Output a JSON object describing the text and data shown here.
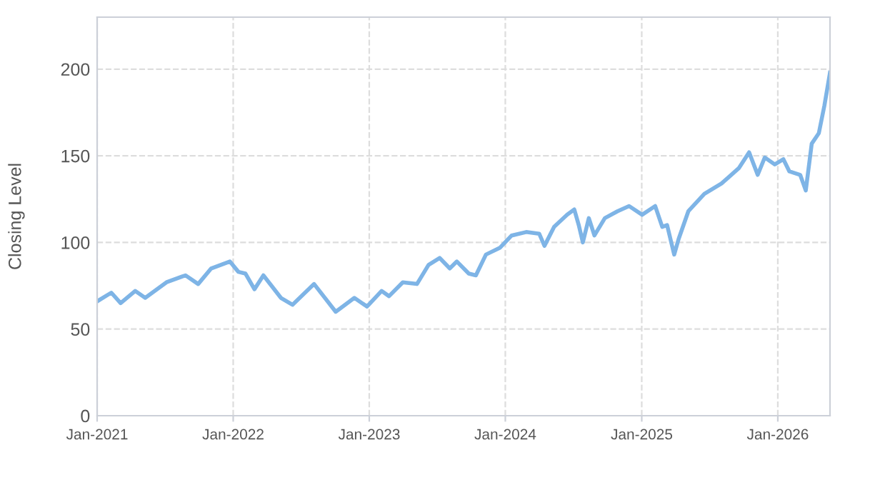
{
  "chart_data": {
    "type": "line",
    "ylabel": "Closing Level",
    "xlim": [
      "2021-01-01",
      "2026-05-21"
    ],
    "ylim": [
      0,
      230
    ],
    "yticks": [
      0,
      50,
      100,
      150,
      200
    ],
    "xticks": [
      {
        "value": "2021-01-01",
        "label": "Jan-2021"
      },
      {
        "value": "2022-01-01",
        "label": "Jan-2022"
      },
      {
        "value": "2023-01-01",
        "label": "Jan-2023"
      },
      {
        "value": "2024-01-01",
        "label": "Jan-2024"
      },
      {
        "value": "2025-01-01",
        "label": "Jan-2025"
      },
      {
        "value": "2026-01-01",
        "label": "Jan-2026"
      }
    ],
    "grid": true,
    "line_style": "solid",
    "marker": "none",
    "x": [
      "2021-01-01",
      "2021-02-08",
      "2021-03-05",
      "2021-04-13",
      "2021-05-10",
      "2021-07-06",
      "2021-08-26",
      "2021-09-29",
      "2021-11-03",
      "2021-12-23",
      "2022-01-15",
      "2022-02-03",
      "2022-02-27",
      "2022-03-23",
      "2022-05-09",
      "2022-06-09",
      "2022-08-06",
      "2022-10-03",
      "2022-11-22",
      "2022-12-26",
      "2023-02-03",
      "2023-02-23",
      "2023-04-01",
      "2023-05-09",
      "2023-06-09",
      "2023-07-09",
      "2023-08-05",
      "2023-08-24",
      "2023-09-25",
      "2023-10-14",
      "2023-11-10",
      "2023-12-18",
      "2024-01-18",
      "2024-02-26",
      "2024-04-01",
      "2024-04-15",
      "2024-05-11",
      "2024-06-15",
      "2024-07-04",
      "2024-07-16",
      "2024-07-27",
      "2024-08-12",
      "2024-08-27",
      "2024-09-24",
      "2024-10-28",
      "2024-11-28",
      "2025-01-02",
      "2025-02-06",
      "2025-02-25",
      "2025-03-10",
      "2025-03-29",
      "2025-04-10",
      "2025-05-06",
      "2025-06-18",
      "2025-08-03",
      "2025-09-19",
      "2025-10-16",
      "2025-11-08",
      "2025-11-27",
      "2025-12-24",
      "2026-01-16",
      "2026-02-01",
      "2026-03-02",
      "2026-03-17",
      "2026-04-02",
      "2026-04-21",
      "2026-05-06",
      "2026-05-21"
    ],
    "series": [
      {
        "color": "#7eb4e6",
        "values": [
          66,
          71,
          65,
          72,
          68,
          77,
          81,
          76,
          85,
          89,
          83,
          82,
          73,
          81,
          68,
          64,
          76,
          60,
          68,
          63,
          72,
          69,
          77,
          76,
          87,
          91,
          85,
          89,
          82,
          81,
          93,
          97,
          104,
          106,
          105,
          98,
          109,
          116,
          119,
          110,
          100,
          114,
          104,
          114,
          118,
          121,
          116,
          121,
          109,
          110,
          93,
          102,
          118,
          128,
          134,
          143,
          152,
          139,
          149,
          145,
          148,
          141,
          139,
          130,
          157,
          163,
          179,
          198
        ]
      }
    ]
  }
}
